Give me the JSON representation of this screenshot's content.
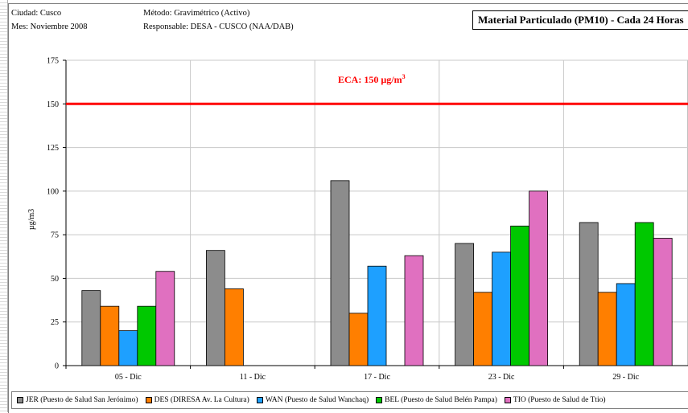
{
  "header": {
    "city": "Ciudad: Cusco",
    "month": "Mes: Noviembre 2008",
    "method": "Método: Gravimétrico (Activo)",
    "responsible": "Responsable: DESA - CUSCO (NAA/DAB)",
    "title": "Material Particulado (PM10) - Cada 24 Horas"
  },
  "colors": {
    "JER": "#8c8c8c",
    "DES": "#ff7f00",
    "WAN": "#1ea0ff",
    "BEL": "#00c800",
    "TIO": "#e070c0",
    "eca_line": "#ff0000"
  },
  "chart_data": {
    "type": "bar",
    "categories": [
      "05 - Dic",
      "11 - Dic",
      "17 - Dic",
      "23 - Dic",
      "29 - Dic"
    ],
    "ylabel": "µg/m3",
    "ylim": [
      0,
      175
    ],
    "yticks": [
      0,
      25,
      50,
      75,
      100,
      125,
      150,
      175
    ],
    "grid": true,
    "legend_position": "bottom",
    "series": [
      {
        "key": "JER",
        "name": "JER (Puesto de Salud San Jerónimo)",
        "values": [
          43,
          66,
          106,
          70,
          82
        ]
      },
      {
        "key": "DES",
        "name": "DES (DIRESA Av. La Cultura)",
        "values": [
          34,
          44,
          30,
          42,
          42
        ]
      },
      {
        "key": "WAN",
        "name": "WAN (Puesto de Salud Wanchaq)",
        "values": [
          20,
          null,
          57,
          65,
          47
        ]
      },
      {
        "key": "BEL",
        "name": "BEL (Puesto de Salud Belén Pampa)",
        "values": [
          34,
          null,
          null,
          80,
          82
        ]
      },
      {
        "key": "TIO",
        "name": "TIO (Puesto de Salud de Ttio)",
        "values": [
          54,
          null,
          63,
          100,
          73
        ]
      }
    ],
    "reference_line": {
      "value": 150,
      "label": "ECA: 150 µg/m3"
    }
  }
}
